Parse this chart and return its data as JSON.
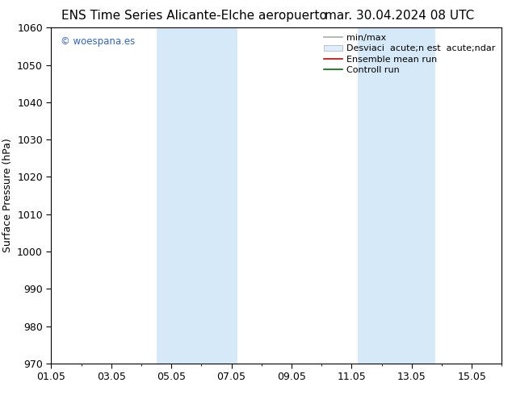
{
  "title_left": "ENS Time Series Alicante-Elche aeropuerto",
  "title_right": "mar. 30.04.2024 08 UTC",
  "ylabel": "Surface Pressure (hPa)",
  "ylim": [
    970,
    1060
  ],
  "yticks": [
    970,
    980,
    990,
    1000,
    1010,
    1020,
    1030,
    1040,
    1050,
    1060
  ],
  "total_days": 15,
  "xtick_labels": [
    "01.05",
    "03.05",
    "05.05",
    "07.05",
    "09.05",
    "11.05",
    "13.05",
    "15.05"
  ],
  "xtick_positions": [
    0,
    2,
    4,
    6,
    8,
    10,
    12,
    14
  ],
  "shaded_bands": [
    {
      "x_start": 3.5,
      "x_end": 6.2
    },
    {
      "x_start": 10.2,
      "x_end": 12.8
    }
  ],
  "band_color": "#d6e9f8",
  "watermark_text": "© woespana.es",
  "watermark_color": "#3366bb",
  "legend_labels": [
    "min/max",
    "Desviaci  acute;n est  acute;ndar",
    "Ensemble mean run",
    "Controll run"
  ],
  "legend_colors_line": [
    "#aaaaaa",
    null,
    "#dd0000",
    "#00aa00"
  ],
  "legend_patch_color": "#ddeeff",
  "bg_color": "#ffffff",
  "plot_bg_color": "#ffffff",
  "title_fontsize": 11,
  "tick_fontsize": 9,
  "ylabel_fontsize": 9,
  "legend_fontsize": 8
}
